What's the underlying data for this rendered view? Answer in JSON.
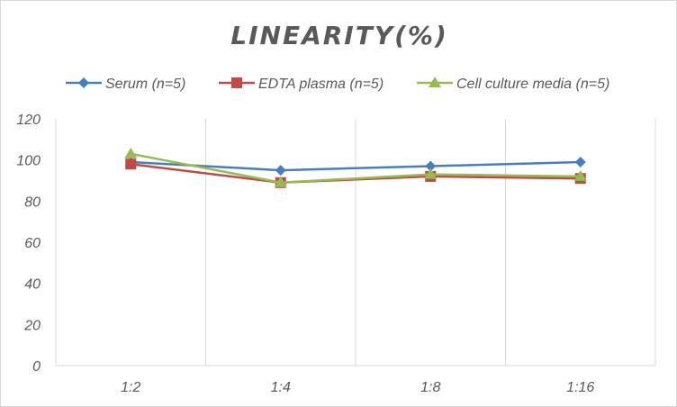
{
  "chart_data": {
    "type": "line",
    "title": "LINEARITY(%)",
    "categories": [
      "1:2",
      "1:4",
      "1:8",
      "1:16"
    ],
    "ylim": [
      0,
      120
    ],
    "yticks": [
      0,
      20,
      40,
      60,
      80,
      100,
      120
    ],
    "grid": "vertical",
    "legend": "top",
    "series": [
      {
        "name": "Serum (n=5)",
        "values": [
          99,
          95,
          97,
          99
        ],
        "color": "#4a7ebb",
        "marker": "diamond"
      },
      {
        "name": "EDTA plasma (n=5)",
        "values": [
          98,
          89,
          92,
          91
        ],
        "color": "#be4b48",
        "marker": "square"
      },
      {
        "name": "Cell culture media (n=5)",
        "values": [
          103,
          89,
          93,
          92
        ],
        "color": "#98b954",
        "marker": "triangle"
      }
    ]
  }
}
